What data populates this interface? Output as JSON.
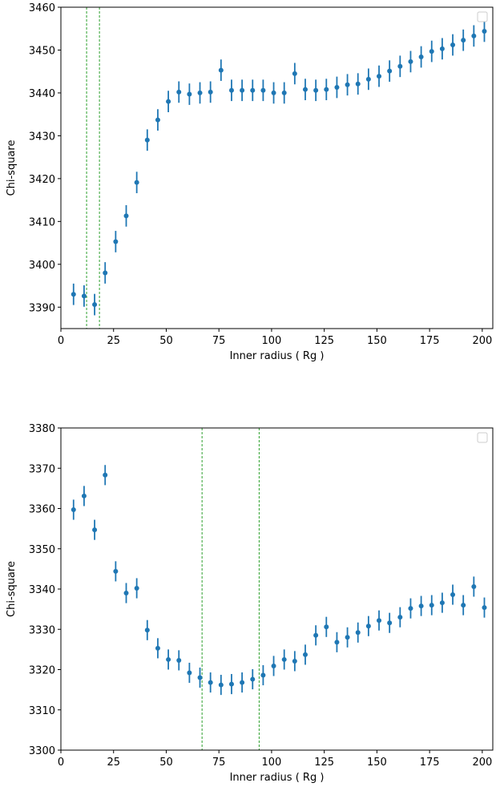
{
  "chart_data": [
    {
      "type": "scatter",
      "xlabel": "Inner radius ( Rg )",
      "ylabel": "Chi-square",
      "xlim": [
        0,
        205
      ],
      "ylim": [
        3385,
        3460
      ],
      "xticks": [
        0,
        25,
        50,
        75,
        100,
        125,
        150,
        175,
        200
      ],
      "yticks": [
        3390,
        3400,
        3410,
        3420,
        3430,
        3440,
        3450,
        3460
      ],
      "x": [
        6,
        11,
        16,
        21,
        26,
        31,
        36,
        41,
        46,
        51,
        56,
        61,
        66,
        71,
        76,
        81,
        86,
        91,
        96,
        101,
        106,
        111,
        116,
        121,
        126,
        131,
        136,
        141,
        146,
        151,
        156,
        161,
        166,
        171,
        176,
        181,
        186,
        191,
        196,
        201
      ],
      "series": [
        {
          "color": "#1f77b4",
          "values": [
            3393.0,
            3392.6,
            3390.6,
            3398.0,
            3405.3,
            3411.3,
            3419.1,
            3429.0,
            3433.7,
            3438.0,
            3440.2,
            3439.7,
            3440.0,
            3440.2,
            3445.3,
            3440.6,
            3440.6,
            3440.6,
            3440.6,
            3440.0,
            3440.0,
            3444.5,
            3440.8,
            3440.6,
            3440.8,
            3441.3,
            3441.9,
            3442.1,
            3443.2,
            3443.9,
            3445.1,
            3446.2,
            3447.3,
            3448.4,
            3449.7,
            3450.3,
            3451.2,
            3452.3,
            3453.3,
            3454.4
          ],
          "errors": [
            2.5,
            2.5,
            2.5,
            2.5,
            2.5,
            2.5,
            2.5,
            2.5,
            2.5,
            2.5,
            2.5,
            2.5,
            2.5,
            2.5,
            2.5,
            2.5,
            2.5,
            2.5,
            2.5,
            2.5,
            2.5,
            2.5,
            2.5,
            2.5,
            2.5,
            2.5,
            2.5,
            2.5,
            2.5,
            2.5,
            2.5,
            2.5,
            2.5,
            2.5,
            2.5,
            2.5,
            2.5,
            2.5,
            2.5,
            2.5
          ]
        }
      ],
      "vlines": [
        12.2,
        18.3
      ],
      "vline_color": "#2ca02c"
    },
    {
      "type": "scatter",
      "xlabel": "Inner radius ( Rg )",
      "ylabel": "Chi-square",
      "xlim": [
        0,
        205
      ],
      "ylim": [
        3300,
        3380
      ],
      "xticks": [
        0,
        25,
        50,
        75,
        100,
        125,
        150,
        175,
        200
      ],
      "yticks": [
        3300,
        3310,
        3320,
        3330,
        3340,
        3350,
        3360,
        3370,
        3380
      ],
      "x": [
        6,
        11,
        16,
        21,
        26,
        31,
        36,
        41,
        46,
        51,
        56,
        61,
        66,
        71,
        76,
        81,
        86,
        91,
        96,
        101,
        106,
        111,
        116,
        121,
        126,
        131,
        136,
        141,
        146,
        151,
        156,
        161,
        166,
        171,
        176,
        181,
        186,
        191,
        196,
        201
      ],
      "series": [
        {
          "color": "#1f77b4",
          "values": [
            3359.7,
            3363.1,
            3354.7,
            3368.3,
            3344.4,
            3339.0,
            3340.2,
            3329.8,
            3325.3,
            3322.5,
            3322.3,
            3319.2,
            3318.0,
            3316.8,
            3316.2,
            3316.4,
            3316.8,
            3317.6,
            3318.6,
            3320.9,
            3322.5,
            3322.1,
            3323.7,
            3328.5,
            3330.6,
            3326.8,
            3328.0,
            3329.2,
            3330.8,
            3332.2,
            3331.6,
            3333.0,
            3335.2,
            3335.8,
            3336.0,
            3336.6,
            3338.6,
            3336.0,
            3340.6,
            3335.4
          ],
          "errors": [
            2.5,
            2.5,
            2.5,
            2.5,
            2.5,
            2.5,
            2.5,
            2.5,
            2.5,
            2.5,
            2.5,
            2.5,
            2.5,
            2.5,
            2.5,
            2.5,
            2.5,
            2.5,
            2.5,
            2.5,
            2.5,
            2.5,
            2.5,
            2.5,
            2.5,
            2.5,
            2.5,
            2.5,
            2.5,
            2.5,
            2.5,
            2.5,
            2.5,
            2.5,
            2.5,
            2.5,
            2.5,
            2.5,
            2.5,
            2.5
          ]
        }
      ],
      "vlines": [
        67.0,
        94.1
      ],
      "vline_color": "#2ca02c"
    }
  ]
}
